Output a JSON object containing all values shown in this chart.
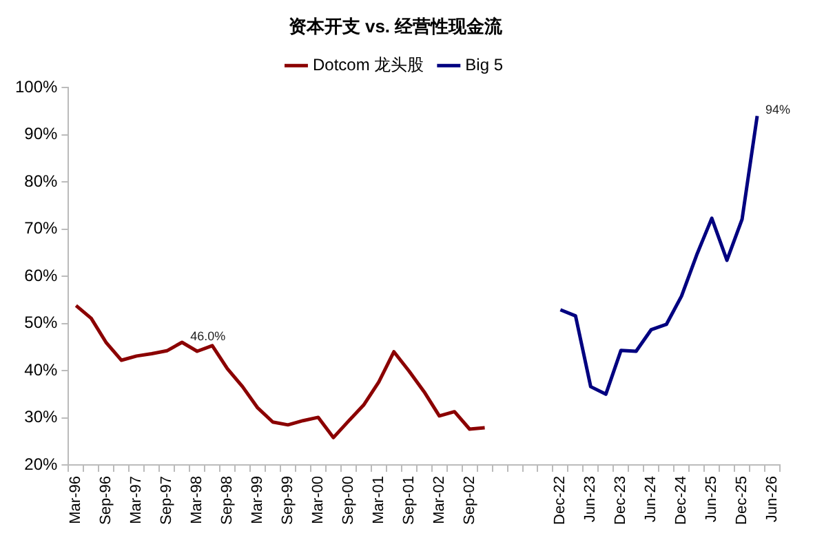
{
  "chart_data": {
    "type": "line",
    "title": "资本开支 vs. 经营性现金流",
    "categories": [
      "Mar-96",
      null,
      "Sep-96",
      null,
      "Mar-97",
      null,
      "Sep-97",
      null,
      "Mar-98",
      null,
      "Sep-98",
      null,
      "Mar-99",
      null,
      "Sep-99",
      null,
      "Mar-00",
      null,
      "Sep-00",
      null,
      "Mar-01",
      null,
      "Sep-01",
      null,
      "Mar-02",
      null,
      "Sep-02",
      null,
      null,
      null,
      null,
      null,
      "Dec-22",
      null,
      "Jun-23",
      null,
      "Dec-23",
      null,
      "Jun-24",
      null,
      "Dec-24",
      null,
      "Jun-25",
      null,
      "Dec-25",
      null,
      "Jun-26"
    ],
    "series": [
      {
        "name": "Dotcom 龙头股",
        "color": "#8b0000",
        "values": [
          53.8,
          51.1,
          45.9,
          42.2,
          43.1,
          43.6,
          44.2,
          46.0,
          44.1,
          45.3,
          40.4,
          36.6,
          32.1,
          29.1,
          28.5,
          29.4,
          30.1,
          25.8,
          29.3,
          32.7,
          37.6,
          44.0,
          39.9,
          35.5,
          30.4,
          31.3,
          27.6,
          27.9,
          null,
          null,
          null,
          null,
          null,
          null,
          null,
          null,
          null,
          null,
          null,
          null,
          null,
          null,
          null,
          null,
          null,
          null,
          null
        ],
        "value_labels": [
          null,
          null,
          null,
          null,
          null,
          null,
          null,
          "46.0%",
          null,
          null,
          null,
          null,
          null,
          null,
          null,
          null,
          null,
          null,
          null,
          null,
          null,
          null,
          null,
          null,
          null,
          null,
          null,
          null,
          null,
          null,
          null,
          null,
          null,
          null,
          null,
          null,
          null,
          null,
          null,
          null,
          null,
          null,
          null,
          null,
          null,
          null,
          null
        ]
      },
      {
        "name": "Big 5",
        "color": "#000080",
        "values": [
          null,
          null,
          null,
          null,
          null,
          null,
          null,
          null,
          null,
          null,
          null,
          null,
          null,
          null,
          null,
          null,
          null,
          null,
          null,
          null,
          null,
          null,
          null,
          null,
          null,
          null,
          null,
          null,
          null,
          null,
          null,
          null,
          52.9,
          51.6,
          36.6,
          35.0,
          44.3,
          44.1,
          48.7,
          49.8,
          55.8,
          64.5,
          72.3,
          63.4,
          72.1,
          94,
          null
        ],
        "value_labels": [
          null,
          null,
          null,
          null,
          null,
          null,
          null,
          null,
          null,
          null,
          null,
          null,
          null,
          null,
          null,
          null,
          null,
          null,
          null,
          null,
          null,
          null,
          null,
          null,
          null,
          null,
          null,
          null,
          null,
          null,
          null,
          null,
          null,
          null,
          null,
          null,
          null,
          null,
          null,
          null,
          null,
          null,
          null,
          null,
          null,
          "94%",
          null
        ]
      }
    ],
    "ylim": [
      20,
      100
    ],
    "yticks": [
      {
        "value": 20,
        "label": "20%"
      },
      {
        "value": 30,
        "label": "30%"
      },
      {
        "value": 40,
        "label": "40%"
      },
      {
        "value": 50,
        "label": "50%"
      },
      {
        "value": 60,
        "label": "60%"
      },
      {
        "value": 70,
        "label": "70%"
      },
      {
        "value": 80,
        "label": "80%"
      },
      {
        "value": 90,
        "label": "90%"
      },
      {
        "value": 100,
        "label": "100%"
      }
    ],
    "grid": false,
    "legend": "top",
    "marker": "none",
    "line_style": "solid"
  }
}
